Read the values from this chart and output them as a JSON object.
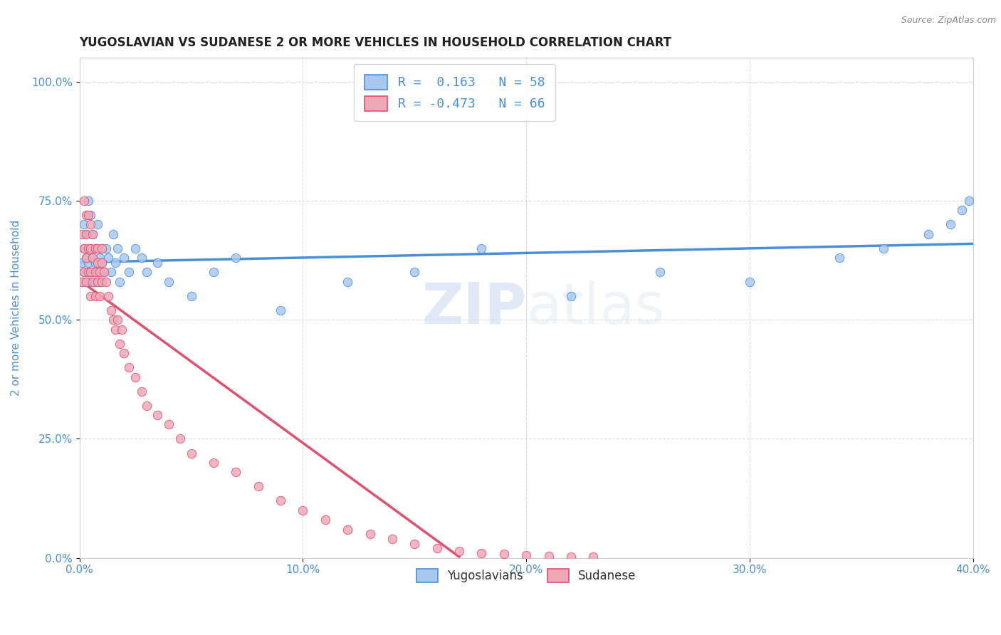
{
  "title": "YUGOSLAVIAN VS SUDANESE 2 OR MORE VEHICLES IN HOUSEHOLD CORRELATION CHART",
  "source_text": "Source: ZipAtlas.com",
  "ylabel": "2 or more Vehicles in Household",
  "xlim": [
    0.0,
    0.4
  ],
  "ylim": [
    0.0,
    1.05
  ],
  "yticks": [
    0.0,
    0.25,
    0.5,
    0.75,
    1.0
  ],
  "ytick_labels": [
    "0.0%",
    "25.0%",
    "50.0%",
    "75.0%",
    "100.0%"
  ],
  "xticks": [
    0.0,
    0.1,
    0.2,
    0.3,
    0.4
  ],
  "xtick_labels": [
    "0.0%",
    "10.0%",
    "20.0%",
    "30.0%",
    "40.0%"
  ],
  "blue_color": "#a8c8f0",
  "pink_color": "#f0a8b8",
  "blue_line_color": "#4a90d9",
  "pink_line_color": "#e05070",
  "R_blue": 0.163,
  "N_blue": 58,
  "R_pink": -0.473,
  "N_pink": 66,
  "legend_label_blue": "Yugoslavians",
  "legend_label_pink": "Sudanese",
  "watermark_zip": "ZIP",
  "watermark_atlas": "atlas",
  "title_color": "#222222",
  "axis_label_color": "#4a90d9",
  "tick_color": "#4a90d9",
  "grid_color": "#cccccc",
  "background_color": "#ffffff",
  "yugoslav_x": [
    0.001,
    0.001,
    0.002,
    0.002,
    0.002,
    0.003,
    0.003,
    0.003,
    0.004,
    0.004,
    0.004,
    0.005,
    0.005,
    0.005,
    0.005,
    0.006,
    0.006,
    0.006,
    0.007,
    0.007,
    0.007,
    0.008,
    0.008,
    0.009,
    0.009,
    0.01,
    0.01,
    0.011,
    0.012,
    0.013,
    0.014,
    0.015,
    0.016,
    0.017,
    0.018,
    0.02,
    0.022,
    0.025,
    0.028,
    0.03,
    0.035,
    0.04,
    0.05,
    0.06,
    0.07,
    0.09,
    0.12,
    0.15,
    0.18,
    0.22,
    0.26,
    0.3,
    0.34,
    0.36,
    0.38,
    0.39,
    0.395,
    0.398
  ],
  "yugoslav_y": [
    0.62,
    0.58,
    0.6,
    0.65,
    0.7,
    0.58,
    0.63,
    0.68,
    0.62,
    0.6,
    0.75,
    0.6,
    0.65,
    0.58,
    0.72,
    0.63,
    0.6,
    0.68,
    0.62,
    0.65,
    0.58,
    0.7,
    0.6,
    0.63,
    0.58,
    0.65,
    0.62,
    0.6,
    0.65,
    0.63,
    0.6,
    0.68,
    0.62,
    0.65,
    0.58,
    0.63,
    0.6,
    0.65,
    0.63,
    0.6,
    0.62,
    0.58,
    0.55,
    0.6,
    0.63,
    0.52,
    0.58,
    0.6,
    0.65,
    0.55,
    0.6,
    0.58,
    0.63,
    0.65,
    0.68,
    0.7,
    0.73,
    0.75
  ],
  "sudanese_x": [
    0.001,
    0.001,
    0.002,
    0.002,
    0.002,
    0.003,
    0.003,
    0.003,
    0.003,
    0.004,
    0.004,
    0.004,
    0.005,
    0.005,
    0.005,
    0.005,
    0.006,
    0.006,
    0.006,
    0.007,
    0.007,
    0.007,
    0.008,
    0.008,
    0.008,
    0.009,
    0.009,
    0.01,
    0.01,
    0.01,
    0.011,
    0.012,
    0.013,
    0.014,
    0.015,
    0.016,
    0.017,
    0.018,
    0.019,
    0.02,
    0.022,
    0.025,
    0.028,
    0.03,
    0.035,
    0.04,
    0.045,
    0.05,
    0.06,
    0.07,
    0.08,
    0.09,
    0.1,
    0.11,
    0.12,
    0.13,
    0.14,
    0.15,
    0.16,
    0.17,
    0.18,
    0.19,
    0.2,
    0.21,
    0.22,
    0.23
  ],
  "sudanese_y": [
    0.68,
    0.58,
    0.75,
    0.65,
    0.6,
    0.72,
    0.68,
    0.63,
    0.58,
    0.72,
    0.65,
    0.6,
    0.7,
    0.65,
    0.6,
    0.55,
    0.68,
    0.63,
    0.58,
    0.65,
    0.6,
    0.55,
    0.65,
    0.62,
    0.58,
    0.6,
    0.55,
    0.65,
    0.62,
    0.58,
    0.6,
    0.58,
    0.55,
    0.52,
    0.5,
    0.48,
    0.5,
    0.45,
    0.48,
    0.43,
    0.4,
    0.38,
    0.35,
    0.32,
    0.3,
    0.28,
    0.25,
    0.22,
    0.2,
    0.18,
    0.15,
    0.12,
    0.1,
    0.08,
    0.06,
    0.05,
    0.04,
    0.03,
    0.02,
    0.015,
    0.01,
    0.008,
    0.006,
    0.004,
    0.002,
    0.002
  ]
}
